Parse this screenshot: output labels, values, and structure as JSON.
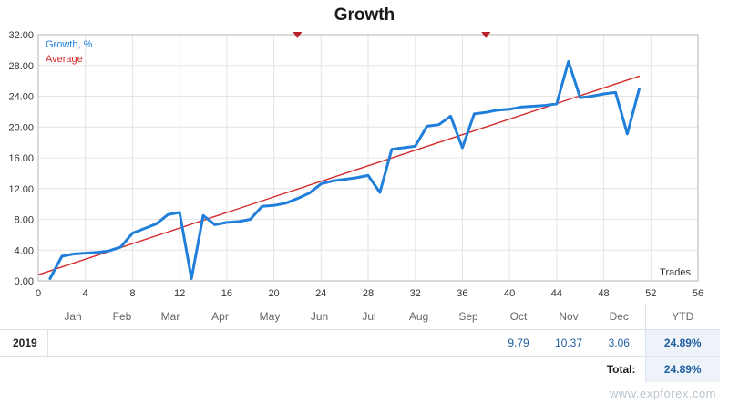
{
  "chart_data": {
    "type": "line",
    "title": "Growth",
    "xlabel": "Trades",
    "ylabel": "",
    "xlim": [
      0,
      56
    ],
    "ylim": [
      0,
      32
    ],
    "x_ticks": [
      0,
      4,
      8,
      12,
      16,
      20,
      24,
      28,
      32,
      36,
      40,
      44,
      48,
      52,
      56
    ],
    "y_ticks": [
      "0.00",
      "4.00",
      "8.00",
      "12.00",
      "16.00",
      "20.00",
      "24.00",
      "28.00",
      "32.00"
    ],
    "grid": true,
    "legend": "top-left",
    "markers_top": [
      22,
      38
    ],
    "series": [
      {
        "name": "Growth, %",
        "color": "#1f7fdb",
        "x": [
          1,
          2,
          3,
          4,
          5,
          6,
          7,
          8,
          9,
          10,
          11,
          12,
          13,
          14,
          15,
          16,
          17,
          18,
          19,
          20,
          21,
          22,
          23,
          24,
          25,
          26,
          27,
          28,
          29,
          30,
          31,
          32,
          33,
          34,
          35,
          36,
          37,
          38,
          39,
          40,
          41,
          42,
          43,
          44,
          45,
          46,
          47,
          48,
          49,
          50,
          51
        ],
        "y": [
          0.3,
          3.2,
          3.5,
          3.6,
          3.7,
          3.9,
          4.4,
          6.2,
          6.8,
          7.4,
          8.6,
          8.9,
          0.3,
          8.5,
          7.3,
          7.6,
          7.7,
          8.0,
          9.7,
          9.8,
          10.1,
          10.7,
          11.4,
          12.6,
          13.0,
          13.2,
          13.4,
          13.7,
          11.5,
          17.1,
          17.3,
          17.5,
          20.1,
          20.3,
          21.4,
          17.3,
          21.7,
          21.9,
          22.2,
          22.3,
          22.6,
          22.7,
          22.8,
          23.0,
          28.5,
          23.8,
          24.0,
          24.3,
          24.5,
          19.1,
          24.9
        ]
      },
      {
        "name": "Average",
        "color": "#d42a2a",
        "x": [
          0,
          51
        ],
        "y": [
          0.8,
          26.6
        ]
      }
    ]
  },
  "table": {
    "months": [
      "Jan",
      "Feb",
      "Mar",
      "Apr",
      "May",
      "Jun",
      "Jul",
      "Aug",
      "Sep",
      "Oct",
      "Nov",
      "Dec"
    ],
    "ytd_header": "YTD",
    "year": "2019",
    "values": [
      "",
      "",
      "",
      "",
      "",
      "",
      "",
      "",
      "",
      "9.79",
      "10.37",
      "3.06"
    ],
    "ytd": "24.89%",
    "total_label": "Total:",
    "total": "24.89%"
  },
  "watermark": "www.expforex.com"
}
